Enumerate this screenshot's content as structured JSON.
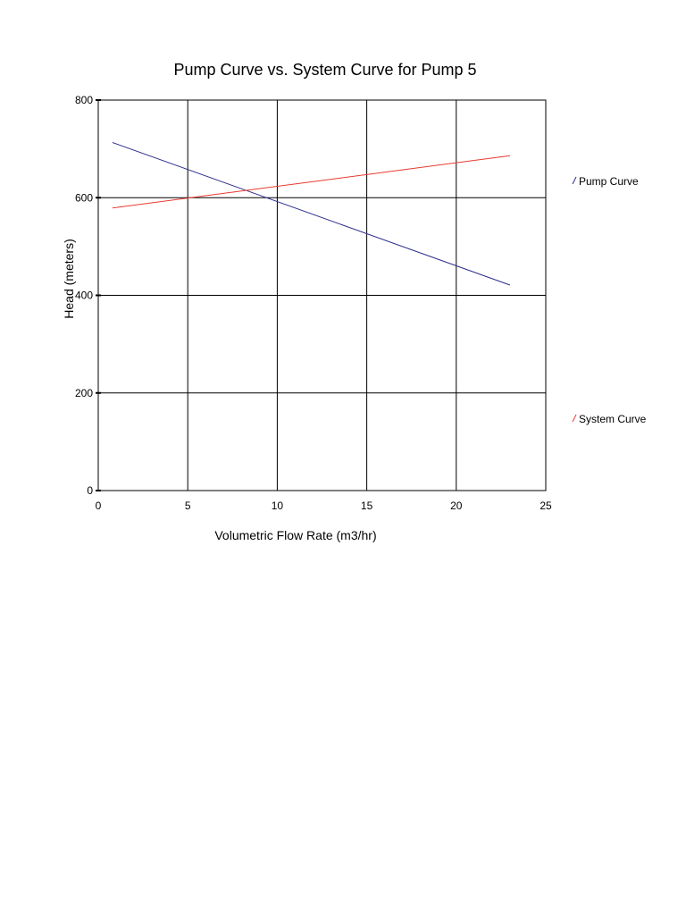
{
  "chart_data": {
    "type": "line",
    "title": "Pump Curve vs. System Curve for Pump 5",
    "xlabel": "Volumetric Flow Rate (m3/hr)",
    "ylabel": "Head (meters)",
    "xlim": [
      0,
      25
    ],
    "ylim": [
      0,
      800
    ],
    "xticks": [
      "0",
      "5",
      "10",
      "15",
      "20",
      "25"
    ],
    "yticks": [
      "0",
      "200",
      "400",
      "600",
      "800"
    ],
    "grid": true,
    "legend_position": "right",
    "series": [
      {
        "name": "Pump Curve",
        "color": "#2b2b8c",
        "x": [
          0.8,
          23
        ],
        "y": [
          713,
          421
        ]
      },
      {
        "name": "System Curve",
        "color": "#e8392f",
        "x": [
          0.8,
          23
        ],
        "y": [
          579,
          686
        ]
      }
    ]
  }
}
